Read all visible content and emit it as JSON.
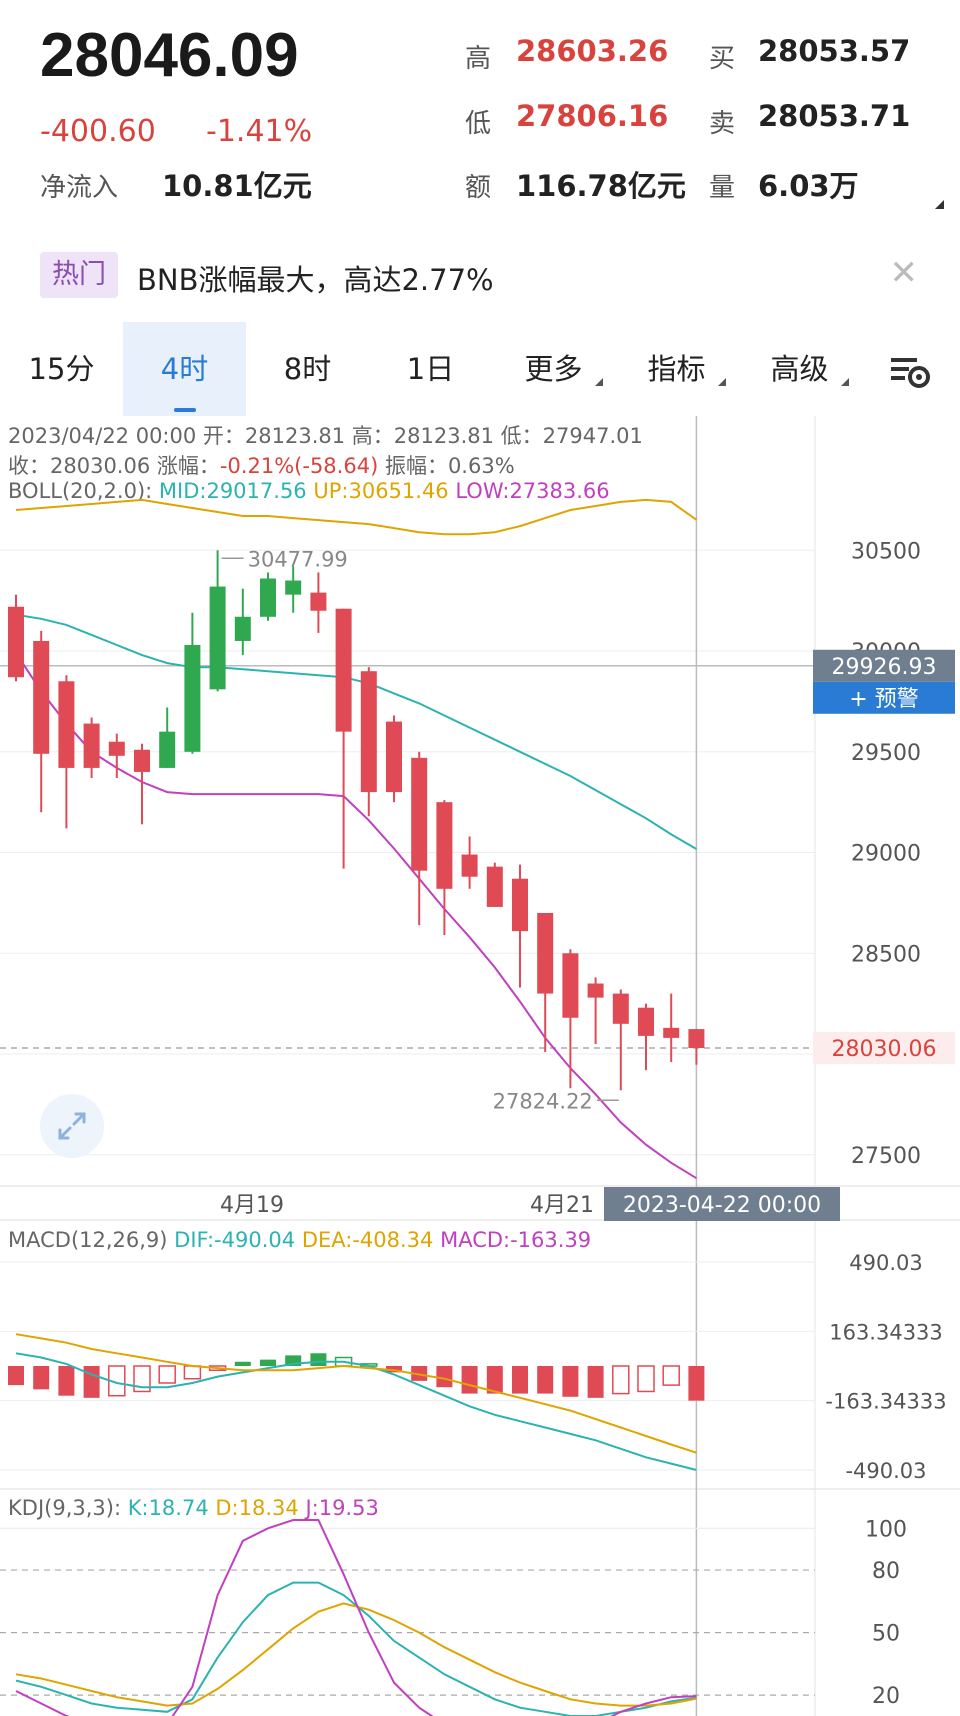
{
  "quote": {
    "price": "28046.09",
    "change": "-400.60",
    "change_pct": "-1.41%",
    "net_inflow_label": "净流入",
    "net_inflow_value": "10.81亿元",
    "high_label": "高",
    "high_value": "28603.26",
    "low_label": "低",
    "low_value": "27806.16",
    "amount_label": "额",
    "amount_value": "116.78亿元",
    "buy_label": "买",
    "buy_value": "28053.57",
    "sell_label": "卖",
    "sell_value": "28053.71",
    "volume_label": "量",
    "volume_value": "6.03万"
  },
  "hot": {
    "tag": "热门",
    "text": "BNB涨幅最大，高达2.77%"
  },
  "tabs": [
    {
      "label": "15分"
    },
    {
      "label": "4时"
    },
    {
      "label": "8时"
    },
    {
      "label": "1日"
    },
    {
      "label": "更多"
    },
    {
      "label": "指标"
    },
    {
      "label": "高级"
    }
  ],
  "active_tab": "4时",
  "candle_info": {
    "line1": "2023/04/22 00:00 开：28123.81 高：28123.81 低：27947.01",
    "line2_a": "收：28030.06 涨幅：",
    "line2_b": "-0.21%(-58.64)",
    "line2_c": " 振幅：0.63%",
    "boll_prefix": "BOLL(20,2.0): ",
    "boll_mid": "MID:29017.56",
    "boll_up": "UP:30651.46",
    "boll_low": "LOW:27383.66"
  },
  "main_chart": {
    "y_labels": [
      "30500",
      "30000",
      "29500",
      "29000",
      "28500",
      "27500"
    ],
    "max_label": "30477.99",
    "min_label": "27824.22",
    "crosshair_price": "29926.93",
    "alert_button": "+ 预警",
    "last_price": "28030.06",
    "x_labels": [
      "4月19",
      "4月21"
    ],
    "crosshair_time": "2023-04-22 00:00"
  },
  "macd": {
    "prefix": "MACD(12,26,9) ",
    "dif": "DIF:-490.04",
    "dea": "DEA:-408.34",
    "macd": "MACD:-163.39",
    "y_labels": [
      "490.03",
      "163.34333",
      "-163.34333",
      "-490.03"
    ]
  },
  "kdj": {
    "prefix": "KDJ(9,3,3): ",
    "k": "K:18.74",
    "d": "D:18.34",
    "j": "J:19.53",
    "y_labels": [
      "100",
      "80",
      "50",
      "20"
    ]
  },
  "colors": {
    "up": "#2fa84f",
    "down": "#e04a55",
    "mid": "#2bb3b0",
    "upper": "#e0a400",
    "lower": "#c040c0",
    "accent": "#2a7bd4"
  },
  "chart_data": {
    "type": "candlestick",
    "y_range": [
      27350,
      30700
    ],
    "candles": [
      {
        "o": 30220,
        "h": 30280,
        "l": 29850,
        "c": 29870
      },
      {
        "o": 30050,
        "h": 30100,
        "l": 29200,
        "c": 29490
      },
      {
        "o": 29850,
        "h": 29880,
        "l": 29120,
        "c": 29420
      },
      {
        "o": 29640,
        "h": 29670,
        "l": 29370,
        "c": 29420
      },
      {
        "o": 29550,
        "h": 29590,
        "l": 29370,
        "c": 29480
      },
      {
        "o": 29510,
        "h": 29540,
        "l": 29140,
        "c": 29400
      },
      {
        "o": 29420,
        "h": 29720,
        "l": 29420,
        "c": 29600
      },
      {
        "o": 29500,
        "h": 30190,
        "l": 29490,
        "c": 30030
      },
      {
        "o": 29810,
        "h": 30500,
        "l": 29800,
        "c": 30320
      },
      {
        "o": 30050,
        "h": 30310,
        "l": 29980,
        "c": 30170
      },
      {
        "o": 30170,
        "h": 30390,
        "l": 30150,
        "c": 30360
      },
      {
        "o": 30280,
        "h": 30420,
        "l": 30190,
        "c": 30350
      },
      {
        "o": 30290,
        "h": 30390,
        "l": 30090,
        "c": 30200
      },
      {
        "o": 30210,
        "h": 30210,
        "l": 28920,
        "c": 29600
      },
      {
        "o": 29900,
        "h": 29920,
        "l": 29180,
        "c": 29300
      },
      {
        "o": 29650,
        "h": 29680,
        "l": 29250,
        "c": 29300
      },
      {
        "o": 29470,
        "h": 29500,
        "l": 28640,
        "c": 28910
      },
      {
        "o": 29250,
        "h": 29260,
        "l": 28590,
        "c": 28820
      },
      {
        "o": 28990,
        "h": 29080,
        "l": 28820,
        "c": 28880
      },
      {
        "o": 28930,
        "h": 28950,
        "l": 28760,
        "c": 28730
      },
      {
        "o": 28870,
        "h": 28940,
        "l": 28330,
        "c": 28610
      },
      {
        "o": 28700,
        "h": 28700,
        "l": 28010,
        "c": 28300
      },
      {
        "o": 28500,
        "h": 28520,
        "l": 27830,
        "c": 28180
      },
      {
        "o": 28350,
        "h": 28380,
        "l": 28050,
        "c": 28280
      },
      {
        "o": 28300,
        "h": 28320,
        "l": 27820,
        "c": 28150
      },
      {
        "o": 28230,
        "h": 28250,
        "l": 27920,
        "c": 28090
      },
      {
        "o": 28130,
        "h": 28300,
        "l": 27960,
        "c": 28080
      },
      {
        "o": 28123.81,
        "h": 28123.81,
        "l": 27947.01,
        "c": 28030.06
      }
    ],
    "boll_up": [
      30700,
      30710,
      30720,
      30730,
      30740,
      30750,
      30730,
      30710,
      30690,
      30670,
      30670,
      30660,
      30650,
      30640,
      30630,
      30610,
      30590,
      30580,
      30580,
      30590,
      30620,
      30660,
      30700,
      30720,
      30740,
      30750,
      30740,
      30651.46
    ],
    "boll_mid": [
      30180,
      30160,
      30130,
      30080,
      30030,
      29980,
      29940,
      29920,
      29920,
      29910,
      29900,
      29890,
      29880,
      29870,
      29840,
      29790,
      29740,
      29680,
      29620,
      29560,
      29500,
      29440,
      29380,
      29310,
      29240,
      29170,
      29090,
      29017.56
    ],
    "boll_low": [
      29990,
      29800,
      29640,
      29500,
      29420,
      29350,
      29300,
      29290,
      29290,
      29290,
      29290,
      29290,
      29290,
      29280,
      29160,
      29020,
      28870,
      28720,
      28580,
      28430,
      28260,
      28080,
      27930,
      27800,
      27660,
      27550,
      27460,
      27383.66
    ],
    "macd_hist": [
      -90,
      -110,
      -140,
      -150,
      -140,
      -120,
      -80,
      -60,
      -20,
      20,
      30,
      50,
      60,
      40,
      10,
      -30,
      -70,
      -100,
      -130,
      -130,
      -130,
      -130,
      -145,
      -150,
      -130,
      -120,
      -90,
      -163.39
    ],
    "macd_dif": [
      60,
      40,
      10,
      -40,
      -80,
      -100,
      -100,
      -80,
      -50,
      -30,
      -10,
      10,
      20,
      20,
      0,
      -40,
      -90,
      -140,
      -190,
      -230,
      -260,
      -290,
      -320,
      -350,
      -390,
      -430,
      -460,
      -490.04
    ],
    "macd_dea": [
      150,
      130,
      110,
      80,
      60,
      40,
      20,
      0,
      -10,
      -20,
      -20,
      -20,
      -10,
      0,
      -10,
      -20,
      -40,
      -60,
      -90,
      -120,
      -150,
      -180,
      -210,
      -250,
      -290,
      -330,
      -370,
      -408.34
    ],
    "kdj_k": [
      27,
      24,
      20,
      16,
      14,
      13,
      12,
      18,
      38,
      55,
      68,
      74,
      74,
      68,
      58,
      46,
      38,
      30,
      24,
      18,
      14,
      12,
      10,
      10,
      12,
      14,
      17,
      18.74
    ],
    "kdj_d": [
      30,
      28,
      25,
      22,
      19,
      17,
      15,
      16,
      23,
      32,
      42,
      52,
      60,
      64,
      61,
      56,
      50,
      43,
      37,
      31,
      26,
      22,
      18,
      16,
      15,
      15,
      16,
      18.34
    ],
    "kdj_j": [
      22,
      16,
      10,
      6,
      4,
      2,
      6,
      24,
      68,
      94,
      100,
      104,
      104,
      78,
      50,
      26,
      14,
      6,
      0,
      -6,
      -4,
      -2,
      2,
      6,
      12,
      16,
      19,
      19.53
    ]
  }
}
